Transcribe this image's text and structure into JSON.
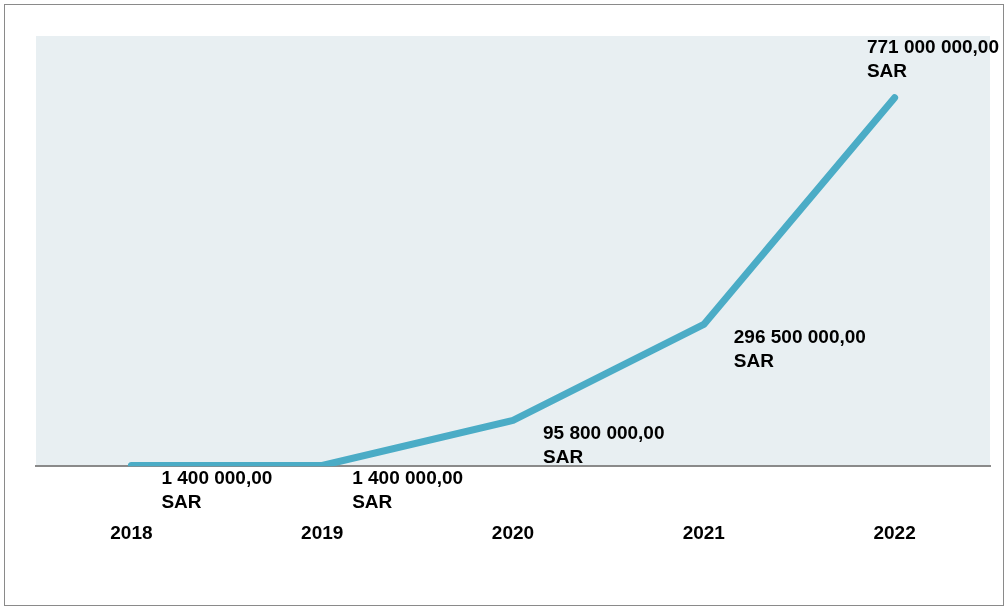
{
  "chart_data": {
    "type": "line",
    "categories": [
      "2018",
      "2019",
      "2020",
      "2021",
      "2022"
    ],
    "series": [
      {
        "color": "#4bacc6",
        "values": [
          1400000,
          1400000,
          95800000,
          296500000,
          771000000
        ],
        "value_labels": [
          "1 400 000,00 SAR",
          "1 400 000,00 SAR",
          "95 800 000,00 SAR",
          "296 500 000,00 SAR",
          "771 000 000,00 SAR"
        ]
      }
    ],
    "ylim": [
      0,
      900000000
    ],
    "tick_labels": "x",
    "grid": false,
    "legend": false,
    "marker": "none",
    "line_style": "solid"
  }
}
